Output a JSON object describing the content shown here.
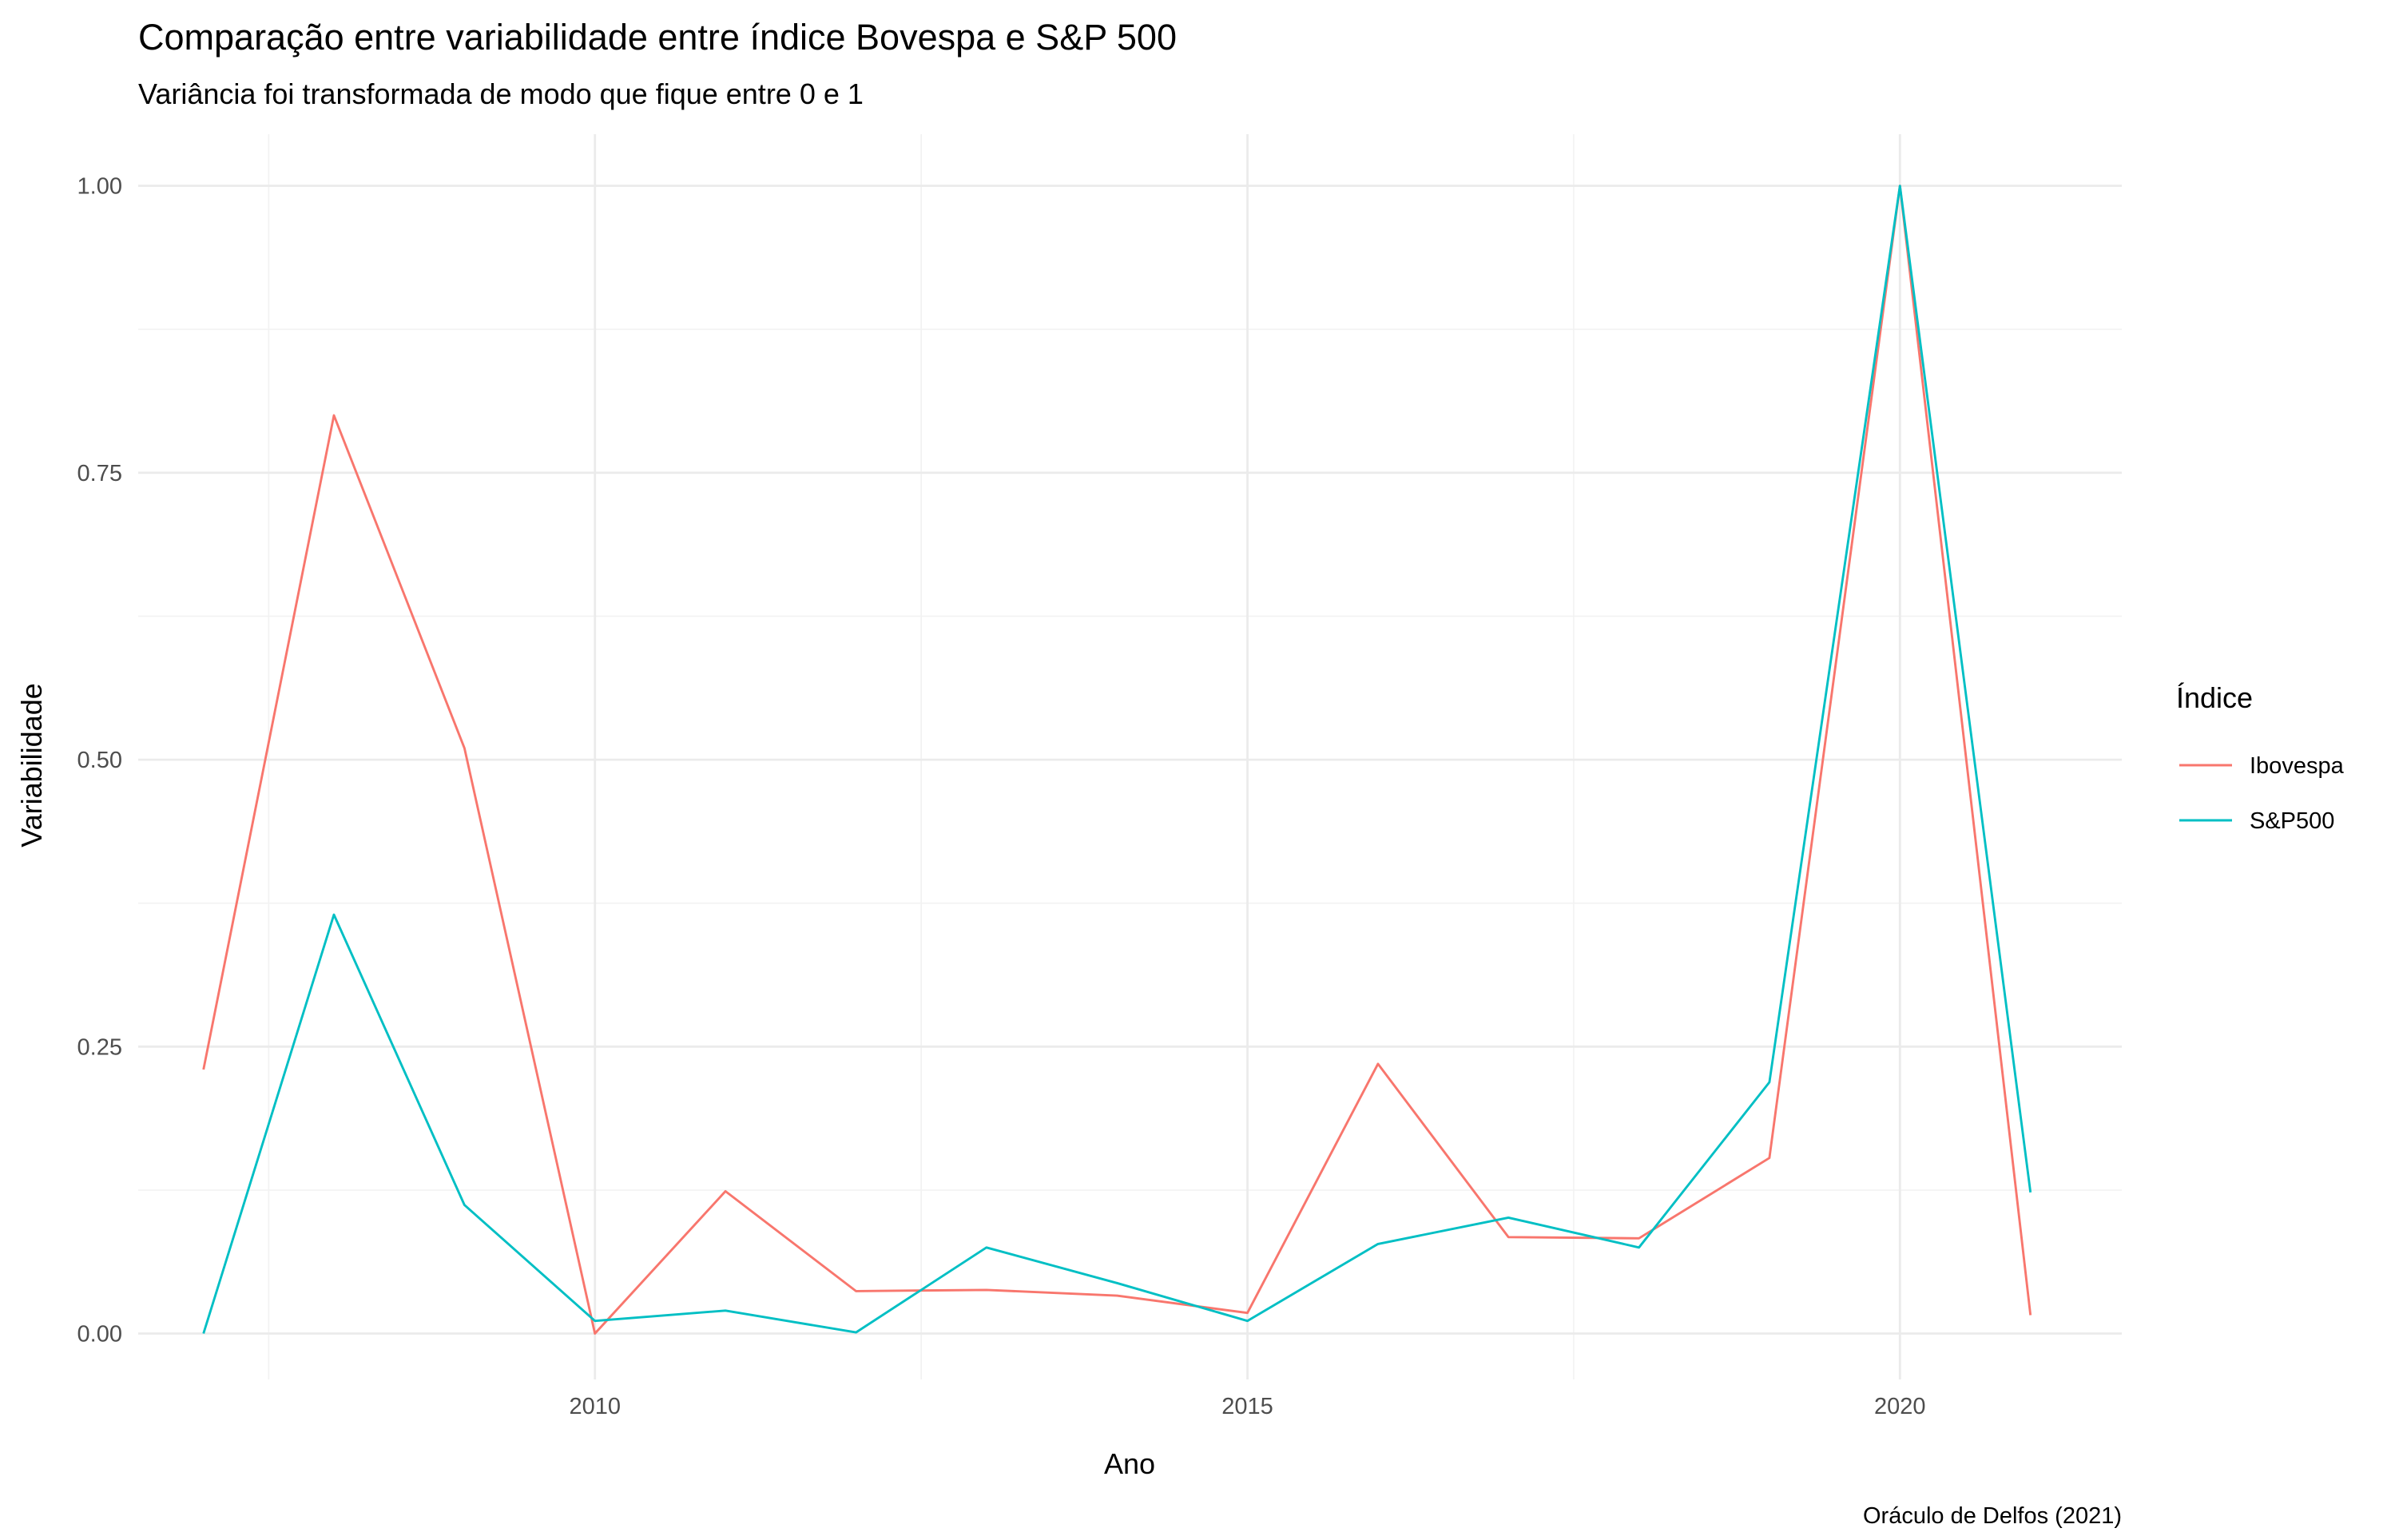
{
  "chart_data": {
    "type": "line",
    "title": "Comparação entre variabilidade entre índice Bovespa e S&P 500",
    "subtitle": "Variância foi transformada de modo que fique entre 0 e 1",
    "xlabel": "Ano",
    "ylabel": "Variabilidade",
    "caption": "Oráculo de Delfos (2021)",
    "x": [
      2007,
      2008,
      2009,
      2010,
      2011,
      2012,
      2013,
      2014,
      2015,
      2016,
      2017,
      2018,
      2019,
      2020,
      2021
    ],
    "xlim": [
      2006.5,
      2021.7
    ],
    "ylim": [
      -0.04,
      1.045
    ],
    "x_ticks": [
      2010,
      2015,
      2020
    ],
    "x_tick_labels": [
      "2010",
      "2015",
      "2020"
    ],
    "y_ticks": [
      0,
      0.25,
      0.5,
      0.75,
      1.0
    ],
    "y_tick_labels": [
      "0.00",
      "0.25",
      "0.50",
      "0.75",
      "1.00"
    ],
    "grid": true,
    "legend": {
      "title": "Índice",
      "position": "right"
    },
    "series": [
      {
        "name": "Ibovespa",
        "color": "#F8766D",
        "values": [
          0.23,
          0.8,
          0.51,
          0.0,
          0.124,
          0.037,
          0.038,
          0.033,
          0.018,
          0.235,
          0.084,
          0.083,
          0.153,
          1.0,
          0.016
        ]
      },
      {
        "name": "S&P500",
        "color": "#00BFC4",
        "values": [
          0.0,
          0.365,
          0.112,
          0.011,
          0.02,
          0.001,
          0.075,
          0.044,
          0.011,
          0.078,
          0.101,
          0.075,
          0.219,
          1.0,
          0.123
        ]
      }
    ]
  }
}
